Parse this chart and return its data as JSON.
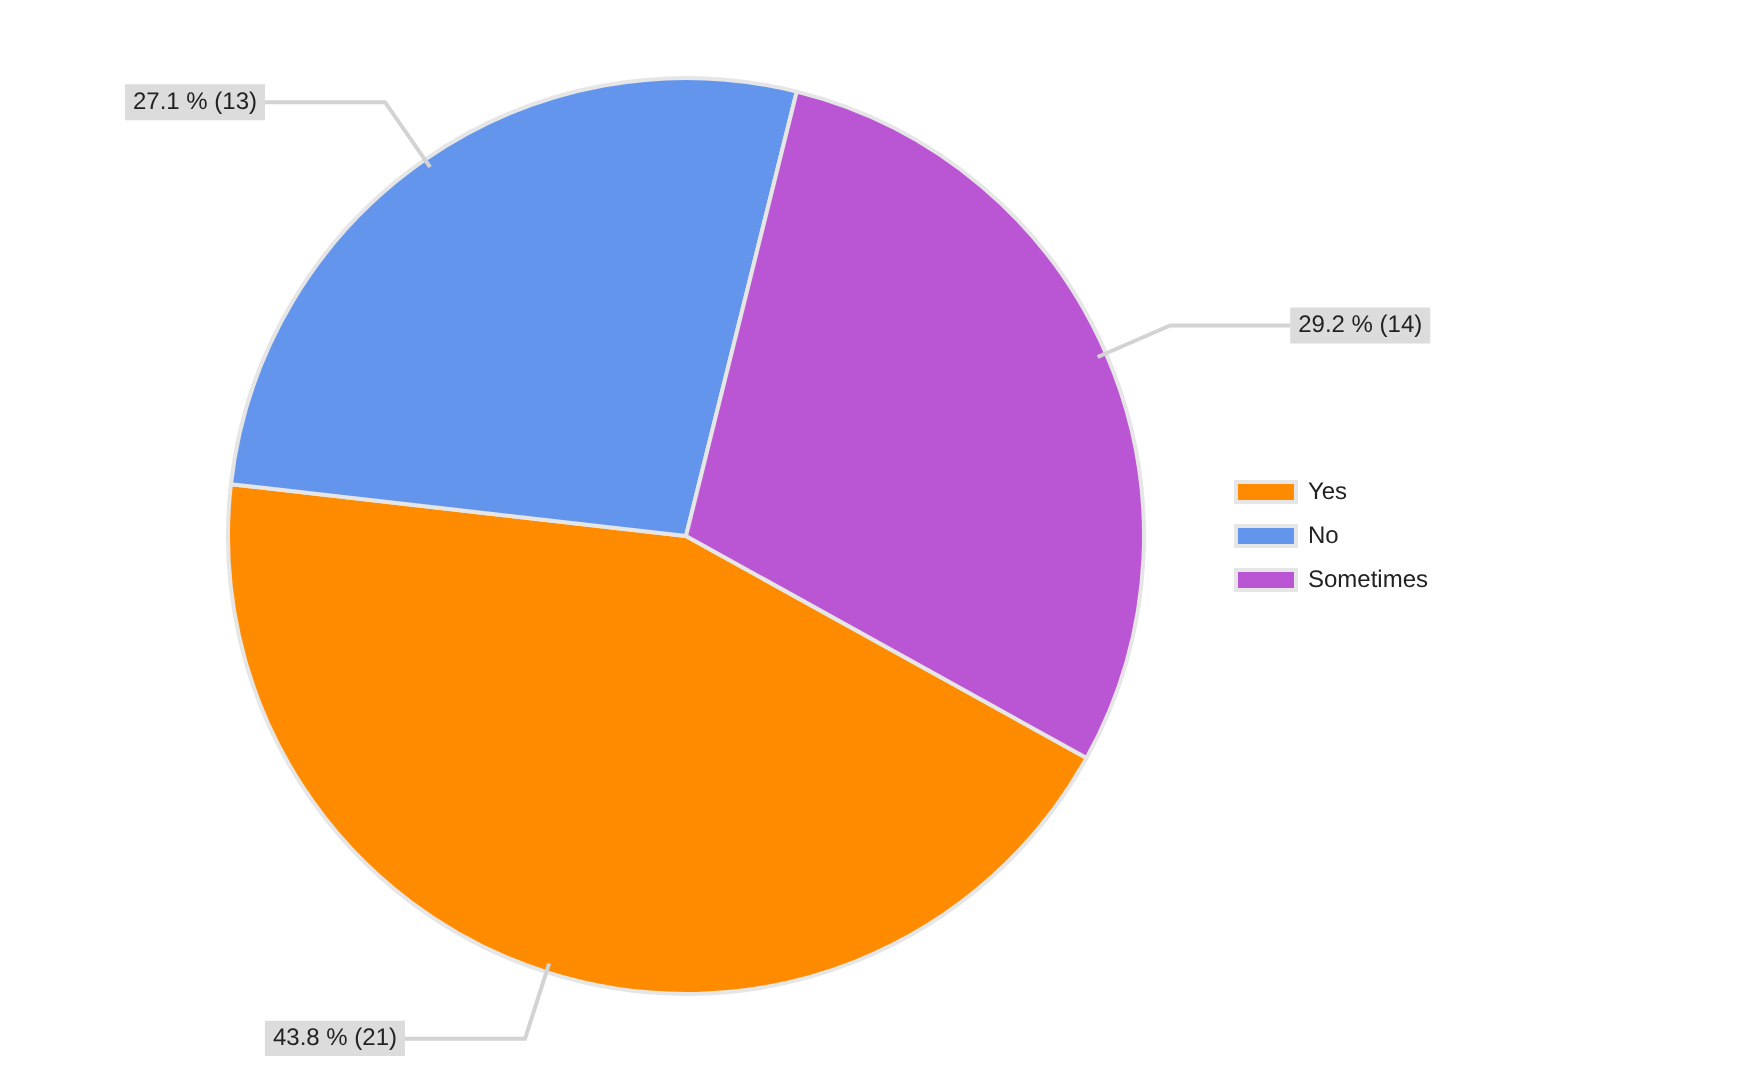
{
  "chart_data": {
    "type": "pie",
    "categories": [
      "Yes",
      "No",
      "Sometimes"
    ],
    "values": [
      21,
      13,
      14
    ],
    "colors": [
      "#ff8c00",
      "#6495ed",
      "#ba55d3"
    ],
    "value_labels": [
      "43.8 % (21)",
      "27.1 % (13)",
      "29.2 % (14)"
    ],
    "legend": "right"
  }
}
